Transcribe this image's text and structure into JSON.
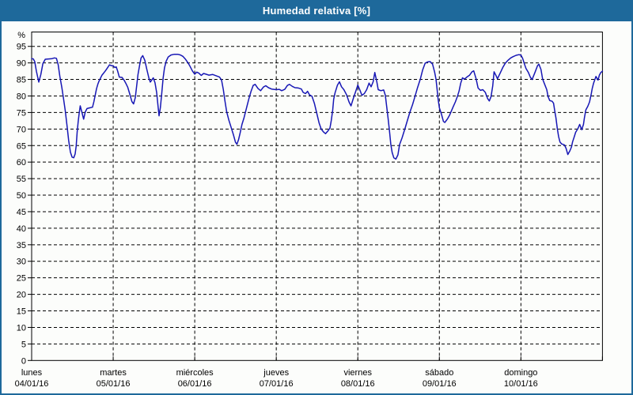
{
  "window": {
    "title": "Humedad relativa [%]"
  },
  "colors": {
    "frame_and_titlebar": "#1e699b",
    "title_text": "#ffffff",
    "background": "#fcfdfb",
    "axis_and_grid": "#000000",
    "series_line": "#1717b5"
  },
  "chart_data": {
    "type": "line",
    "title": "Humedad relativa [%]",
    "ylabel": "%",
    "ylim": [
      0,
      99.3
    ],
    "ytick_min": 0,
    "ytick_max": 95,
    "ytick_step": 5,
    "xlim_hours": [
      0,
      168
    ],
    "x_day_tick_step_hours": 24,
    "grid": "dashed",
    "legend_position": "none",
    "days": [
      {
        "name": "lunes",
        "date": "04/01/16"
      },
      {
        "name": "martes",
        "date": "05/01/16"
      },
      {
        "name": "miércoles",
        "date": "06/01/16"
      },
      {
        "name": "jueves",
        "date": "07/01/16"
      },
      {
        "name": "viernes",
        "date": "08/01/16"
      },
      {
        "name": "sábado",
        "date": "09/01/16"
      },
      {
        "name": "domingo",
        "date": "10/01/16"
      }
    ],
    "series": [
      {
        "name": "Humedad relativa",
        "unit": "%",
        "color": "#1717b5",
        "points": [
          [
            0,
            91.3
          ],
          [
            0.5,
            91.2
          ],
          [
            0.9,
            90.4
          ],
          [
            1.4,
            87.5
          ],
          [
            2.1,
            84.2
          ],
          [
            2.7,
            86.5
          ],
          [
            3.3,
            89.8
          ],
          [
            4.0,
            91.1
          ],
          [
            5.0,
            91.2
          ],
          [
            6.0,
            91.3
          ],
          [
            6.7,
            91.5
          ],
          [
            7.3,
            91.4
          ],
          [
            7.8,
            89.5
          ],
          [
            8.3,
            86.0
          ],
          [
            8.9,
            82.5
          ],
          [
            9.4,
            79.0
          ],
          [
            9.9,
            75.5
          ],
          [
            10.4,
            71.0
          ],
          [
            10.9,
            66.5
          ],
          [
            11.4,
            63.0
          ],
          [
            11.9,
            61.5
          ],
          [
            12.4,
            61.3
          ],
          [
            12.8,
            62.5
          ],
          [
            13.1,
            64.9
          ],
          [
            13.4,
            69.0
          ],
          [
            13.7,
            72.2
          ],
          [
            14.0,
            74.8
          ],
          [
            14.3,
            77.0
          ],
          [
            14.8,
            75.0
          ],
          [
            15.3,
            73.0
          ],
          [
            15.8,
            75.2
          ],
          [
            16.3,
            76.2
          ],
          [
            17.1,
            76.4
          ],
          [
            17.9,
            76.6
          ],
          [
            18.3,
            78.2
          ],
          [
            18.7,
            80.2
          ],
          [
            19.1,
            82.2
          ],
          [
            19.5,
            83.6
          ],
          [
            19.9,
            84.7
          ],
          [
            20.3,
            85.5
          ],
          [
            20.7,
            86.3
          ],
          [
            21.1,
            86.8
          ],
          [
            21.7,
            87.6
          ],
          [
            22.3,
            88.5
          ],
          [
            22.9,
            89.4
          ],
          [
            23.4,
            89.2
          ],
          [
            24.0,
            89.1
          ],
          [
            24.5,
            88.6
          ],
          [
            24.9,
            88.8
          ],
          [
            25.3,
            87.6
          ],
          [
            25.8,
            85.7
          ],
          [
            26.6,
            85.6
          ],
          [
            27.2,
            84.8
          ],
          [
            27.7,
            83.9
          ],
          [
            28.3,
            82.6
          ],
          [
            28.9,
            80.5
          ],
          [
            29.5,
            78.3
          ],
          [
            30.0,
            77.6
          ],
          [
            30.5,
            79.5
          ],
          [
            30.9,
            83.0
          ],
          [
            31.3,
            86.5
          ],
          [
            31.8,
            89.5
          ],
          [
            32.2,
            91.5
          ],
          [
            32.7,
            92.2
          ],
          [
            33.3,
            90.8
          ],
          [
            33.9,
            88.0
          ],
          [
            34.5,
            85.5
          ],
          [
            34.9,
            84.2
          ],
          [
            35.4,
            84.9
          ],
          [
            35.8,
            85.5
          ],
          [
            36.3,
            84.0
          ],
          [
            36.8,
            81.0
          ],
          [
            37.2,
            77.0
          ],
          [
            37.5,
            74.0
          ],
          [
            37.9,
            76.5
          ],
          [
            38.3,
            81.0
          ],
          [
            38.7,
            85.5
          ],
          [
            39.1,
            88.5
          ],
          [
            39.6,
            90.5
          ],
          [
            40.2,
            91.8
          ],
          [
            41.0,
            92.4
          ],
          [
            42.0,
            92.6
          ],
          [
            43.0,
            92.6
          ],
          [
            43.8,
            92.4
          ],
          [
            44.5,
            92.0
          ],
          [
            45.2,
            91.2
          ],
          [
            45.9,
            90.2
          ],
          [
            46.6,
            89.0
          ],
          [
            47.3,
            87.6
          ],
          [
            48.0,
            86.6
          ],
          [
            48.6,
            87.2
          ],
          [
            49.2,
            86.9
          ],
          [
            49.9,
            86.2
          ],
          [
            50.6,
            86.8
          ],
          [
            51.3,
            86.6
          ],
          [
            52.2,
            86.3
          ],
          [
            53.3,
            86.5
          ],
          [
            54.3,
            86.1
          ],
          [
            55.3,
            85.7
          ],
          [
            55.9,
            84.8
          ],
          [
            56.4,
            82.0
          ],
          [
            56.9,
            78.5
          ],
          [
            57.4,
            75.2
          ],
          [
            58.0,
            72.8
          ],
          [
            58.7,
            70.5
          ],
          [
            59.4,
            68.2
          ],
          [
            60.0,
            66.0
          ],
          [
            60.4,
            65.4
          ],
          [
            60.9,
            66.8
          ],
          [
            61.3,
            68.5
          ],
          [
            61.9,
            71.4
          ],
          [
            62.5,
            73.4
          ],
          [
            63.3,
            76.6
          ],
          [
            64.0,
            79.4
          ],
          [
            64.6,
            81.5
          ],
          [
            65.2,
            83.2
          ],
          [
            65.8,
            83.5
          ],
          [
            66.6,
            82.3
          ],
          [
            67.4,
            81.6
          ],
          [
            68.2,
            82.7
          ],
          [
            68.9,
            83.1
          ],
          [
            69.7,
            82.5
          ],
          [
            70.6,
            82.1
          ],
          [
            72.0,
            81.9
          ],
          [
            72.9,
            82.0
          ],
          [
            73.6,
            81.6
          ],
          [
            74.5,
            82.0
          ],
          [
            75.3,
            83.2
          ],
          [
            75.9,
            83.5
          ],
          [
            76.7,
            82.9
          ],
          [
            77.5,
            82.5
          ],
          [
            78.5,
            82.4
          ],
          [
            79.4,
            82.1
          ],
          [
            79.9,
            81.1
          ],
          [
            80.6,
            80.7
          ],
          [
            81.2,
            81.4
          ],
          [
            81.8,
            80.3
          ],
          [
            82.5,
            79.9
          ],
          [
            83.2,
            77.8
          ],
          [
            83.9,
            74.8
          ],
          [
            84.6,
            71.8
          ],
          [
            85.2,
            70.0
          ],
          [
            85.9,
            69.1
          ],
          [
            86.5,
            68.6
          ],
          [
            87.2,
            69.4
          ],
          [
            87.8,
            70.3
          ],
          [
            88.2,
            72.6
          ],
          [
            88.6,
            75.8
          ],
          [
            88.9,
            79.0
          ],
          [
            89.3,
            81.0
          ],
          [
            90.0,
            83.3
          ],
          [
            90.6,
            84.3
          ],
          [
            91.2,
            82.8
          ],
          [
            91.9,
            81.9
          ],
          [
            92.7,
            80.3
          ],
          [
            93.4,
            78.2
          ],
          [
            94.0,
            77.0
          ],
          [
            94.7,
            79.3
          ],
          [
            95.4,
            81.5
          ],
          [
            96.0,
            83.3
          ],
          [
            96.6,
            81.8
          ],
          [
            97.2,
            80.2
          ],
          [
            97.9,
            80.7
          ],
          [
            98.6,
            81.9
          ],
          [
            99.3,
            83.9
          ],
          [
            99.9,
            82.8
          ],
          [
            100.5,
            84.3
          ],
          [
            101.0,
            87.1
          ],
          [
            101.6,
            84.2
          ],
          [
            102.0,
            81.9
          ],
          [
            102.8,
            81.6
          ],
          [
            103.6,
            81.8
          ],
          [
            104.1,
            80.2
          ],
          [
            104.5,
            76.8
          ],
          [
            104.9,
            73.4
          ],
          [
            105.3,
            69.5
          ],
          [
            105.7,
            65.4
          ],
          [
            106.1,
            62.9
          ],
          [
            106.6,
            61.3
          ],
          [
            107.2,
            60.9
          ],
          [
            107.8,
            62.2
          ],
          [
            108.3,
            65.3
          ],
          [
            109.0,
            67.3
          ],
          [
            109.9,
            70.2
          ],
          [
            110.6,
            72.6
          ],
          [
            111.3,
            75.0
          ],
          [
            112.1,
            77.4
          ],
          [
            112.8,
            79.8
          ],
          [
            113.5,
            82.3
          ],
          [
            114.4,
            85.1
          ],
          [
            115.1,
            87.9
          ],
          [
            115.8,
            89.9
          ],
          [
            116.5,
            90.3
          ],
          [
            117.3,
            90.4
          ],
          [
            118.0,
            89.6
          ],
          [
            118.6,
            87.2
          ],
          [
            119.0,
            85.1
          ],
          [
            119.3,
            82.3
          ],
          [
            119.6,
            79.2
          ],
          [
            120.0,
            76.4
          ],
          [
            120.6,
            74.5
          ],
          [
            121.2,
            72.3
          ],
          [
            121.6,
            72.0
          ],
          [
            122.4,
            73.1
          ],
          [
            123.0,
            74.2
          ],
          [
            124.0,
            76.6
          ],
          [
            124.7,
            78.2
          ],
          [
            125.3,
            79.8
          ],
          [
            125.8,
            81.5
          ],
          [
            126.3,
            83.9
          ],
          [
            126.8,
            85.5
          ],
          [
            127.4,
            85.1
          ],
          [
            128.2,
            85.8
          ],
          [
            128.9,
            86.3
          ],
          [
            129.6,
            87.3
          ],
          [
            130.1,
            87.6
          ],
          [
            130.8,
            85.2
          ],
          [
            131.4,
            82.4
          ],
          [
            132.1,
            81.7
          ],
          [
            132.8,
            81.9
          ],
          [
            133.5,
            81.1
          ],
          [
            134.2,
            79.2
          ],
          [
            134.7,
            78.5
          ],
          [
            135.2,
            79.8
          ],
          [
            135.7,
            83.0
          ],
          [
            136.1,
            87.3
          ],
          [
            136.6,
            86.3
          ],
          [
            137.1,
            85.2
          ],
          [
            137.8,
            86.7
          ],
          [
            138.7,
            88.7
          ],
          [
            139.4,
            89.9
          ],
          [
            140.1,
            90.7
          ],
          [
            141.0,
            91.5
          ],
          [
            141.7,
            91.9
          ],
          [
            142.6,
            92.3
          ],
          [
            143.4,
            92.5
          ],
          [
            144.0,
            92.4
          ],
          [
            144.5,
            91.4
          ],
          [
            145.0,
            89.8
          ],
          [
            145.5,
            88.3
          ],
          [
            146.2,
            87.1
          ],
          [
            146.8,
            85.6
          ],
          [
            147.3,
            85.0
          ],
          [
            148.1,
            87.0
          ],
          [
            148.9,
            89.2
          ],
          [
            149.3,
            89.6
          ],
          [
            149.9,
            88.0
          ],
          [
            150.4,
            85.1
          ],
          [
            151.0,
            83.5
          ],
          [
            151.6,
            81.9
          ],
          [
            152.0,
            79.8
          ],
          [
            152.5,
            78.6
          ],
          [
            153.2,
            78.4
          ],
          [
            153.6,
            77.8
          ],
          [
            154.0,
            75.2
          ],
          [
            154.3,
            73.4
          ],
          [
            154.7,
            70.2
          ],
          [
            155.1,
            67.7
          ],
          [
            155.5,
            66.1
          ],
          [
            156.0,
            65.5
          ],
          [
            156.8,
            65.2
          ],
          [
            157.3,
            64.1
          ],
          [
            157.8,
            62.3
          ],
          [
            158.4,
            63.4
          ],
          [
            158.9,
            64.6
          ],
          [
            159.2,
            66.1
          ],
          [
            159.7,
            67.7
          ],
          [
            160.1,
            69.0
          ],
          [
            160.8,
            70.2
          ],
          [
            161.3,
            71.4
          ],
          [
            161.9,
            69.8
          ],
          [
            162.4,
            71.4
          ],
          [
            162.7,
            73.4
          ],
          [
            163.1,
            75.8
          ],
          [
            163.7,
            76.9
          ],
          [
            164.2,
            78.2
          ],
          [
            164.7,
            80.6
          ],
          [
            165.0,
            82.3
          ],
          [
            165.4,
            83.9
          ],
          [
            165.8,
            85.1
          ],
          [
            166.1,
            85.9
          ],
          [
            166.7,
            84.8
          ],
          [
            167.1,
            86.3
          ],
          [
            167.5,
            87.1
          ],
          [
            168.0,
            87.5
          ]
        ]
      }
    ]
  }
}
